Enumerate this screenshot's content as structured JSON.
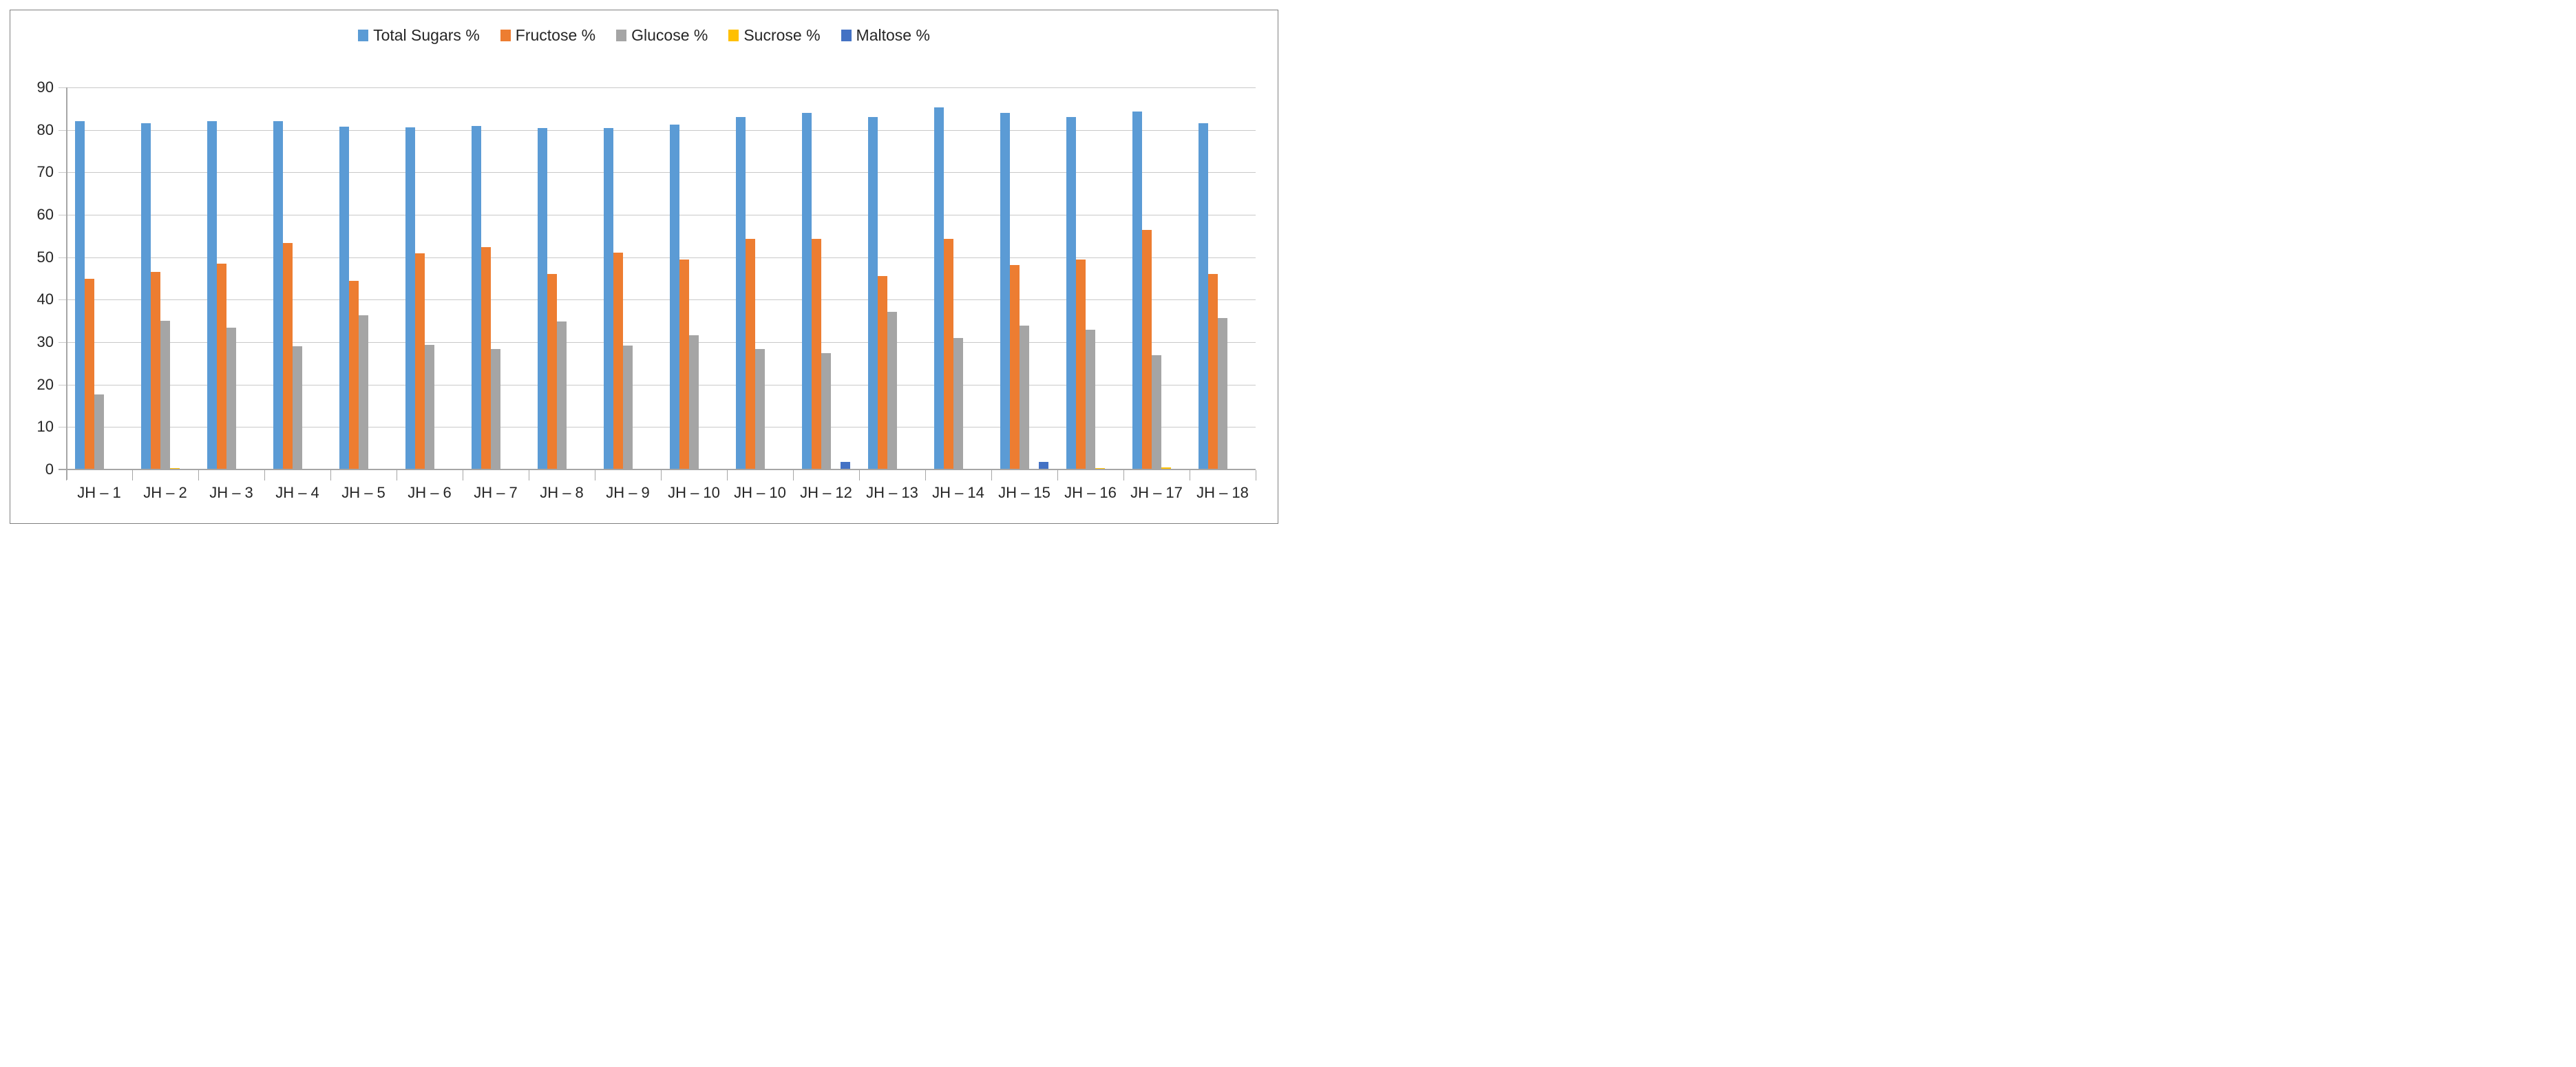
{
  "chart_data": {
    "type": "bar",
    "title": "",
    "categories": [
      "JH – 1",
      "JH – 2",
      "JH – 3",
      "JH – 4",
      "JH – 5",
      "JH – 6",
      "JH – 7",
      "JH – 8",
      "JH – 9",
      "JH – 10",
      "JH – 10",
      "JH – 12",
      "JH – 13",
      "JH – 14",
      "JH – 15",
      "JH – 16",
      "JH – 17",
      "JH – 18"
    ],
    "series": [
      {
        "name": "Total Sugars %",
        "color": "#5B9BD5",
        "values": [
          82.0,
          81.6,
          82.0,
          82.0,
          80.8,
          80.6,
          81.0,
          80.5,
          80.5,
          81.3,
          83.0,
          84.0,
          83.0,
          85.3,
          84.0,
          83.0,
          84.3,
          81.5
        ]
      },
      {
        "name": "Fructose %",
        "color": "#ED7D31",
        "values": [
          45.0,
          46.5,
          48.5,
          53.3,
          44.5,
          51.0,
          52.4,
          46.0,
          51.1,
          49.4,
          54.4,
          54.4,
          45.5,
          54.4,
          48.2,
          49.5,
          56.4,
          46.1
        ]
      },
      {
        "name": "Glucose %",
        "color": "#A5A5A5",
        "values": [
          17.6,
          35.0,
          33.4,
          29.0,
          36.4,
          29.4,
          28.4,
          34.9,
          29.2,
          31.6,
          28.4,
          27.4,
          37.1,
          30.9,
          33.9,
          32.9,
          26.9,
          35.6
        ]
      },
      {
        "name": "Sucrose %",
        "color": "#FFC000",
        "values": [
          0,
          0.4,
          0,
          0,
          0,
          0,
          0,
          0,
          0,
          0,
          0,
          0,
          0,
          0,
          0,
          0.3,
          0.5,
          0
        ]
      },
      {
        "name": "Maltose %",
        "color": "#4472C4",
        "values": [
          0,
          0,
          0,
          0,
          0,
          0,
          0,
          0,
          0,
          0,
          0,
          1.8,
          0,
          0,
          1.8,
          0,
          0,
          0
        ]
      }
    ],
    "ylim": [
      0,
      90
    ],
    "ytick_step": 10,
    "ytick_labels": [
      "0",
      "10",
      "20",
      "30",
      "40",
      "50",
      "60",
      "70",
      "80",
      "90"
    ],
    "xlabel": "",
    "ylabel": "",
    "grid": true,
    "legend_position": "top"
  },
  "colors": {
    "background": "#FFFFFF",
    "gridline": "#C9C9C9",
    "axis": "#A6A6A6",
    "text": "#262626",
    "frame_border": "#808080"
  }
}
